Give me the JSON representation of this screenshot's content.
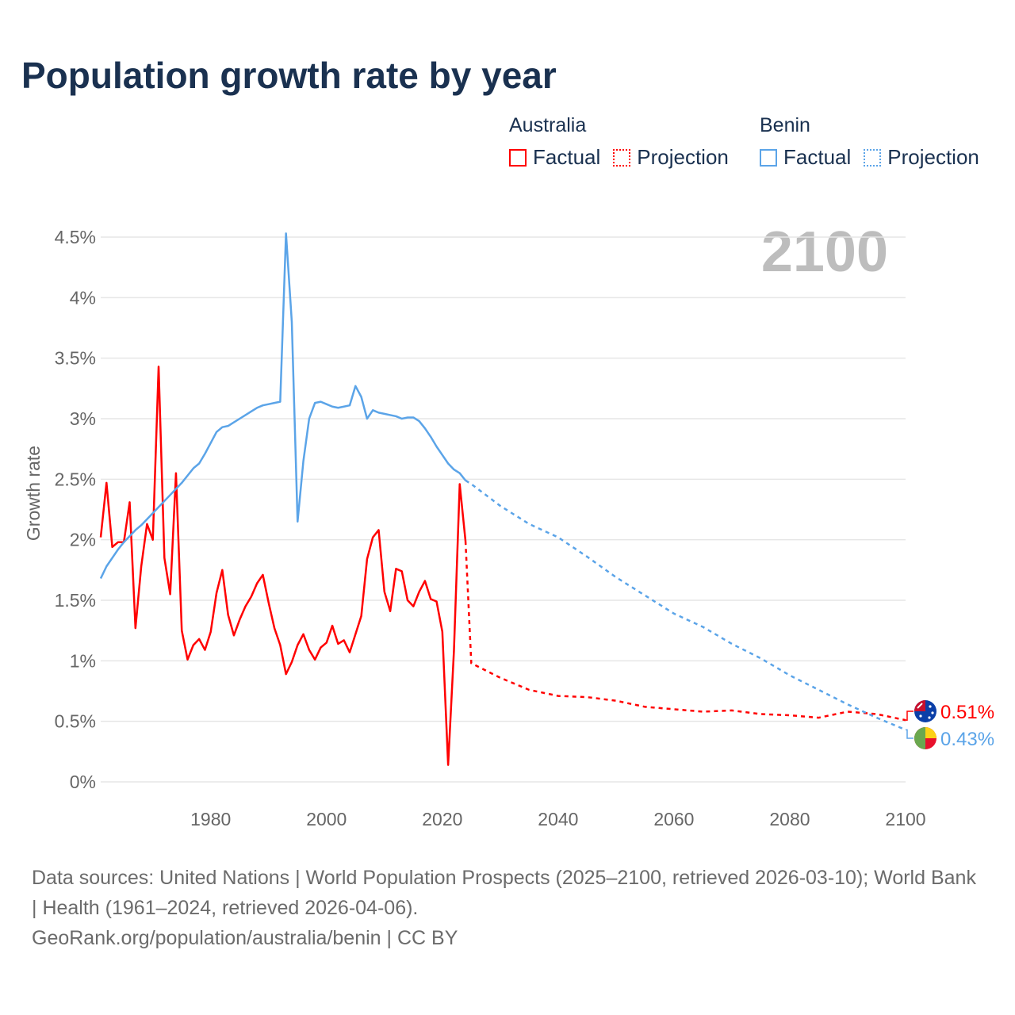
{
  "title": "Population growth rate by year",
  "legend": {
    "groups": [
      {
        "name": "Australia",
        "color": "#ff0000",
        "factual": "Factual",
        "projection": "Projection"
      },
      {
        "name": "Benin",
        "color": "#5ba4e8",
        "factual": "Factual",
        "projection": "Projection"
      }
    ]
  },
  "year_display": "2100",
  "footer": {
    "sources": "Data sources: United Nations | World Population Prospects (2025–2100, retrieved 2026-03-10); World Bank | Health (1961–2024, retrieved 2026-04-06).",
    "credit": "GeoRank.org/population/australia/benin | CC BY"
  },
  "chart_data": {
    "type": "line",
    "title": "Population growth rate by year",
    "xlabel": "",
    "ylabel": "Growth rate",
    "xlim": [
      1961,
      2100
    ],
    "ylim": [
      0,
      4.5
    ],
    "x_ticks": [
      1980,
      2000,
      2020,
      2040,
      2060,
      2080,
      2100
    ],
    "y_ticks": [
      0,
      0.5,
      1,
      1.5,
      2,
      2.5,
      3,
      3.5,
      4,
      4.5
    ],
    "y_tick_labels": [
      "0%",
      "0.5%",
      "1%",
      "1.5%",
      "2%",
      "2.5%",
      "3%",
      "3.5%",
      "4%",
      "4.5%"
    ],
    "grid": true,
    "legend_position": "top-right",
    "series": [
      {
        "name": "Australia",
        "color": "#ff0000",
        "end_label": "0.51%",
        "factual": {
          "start_year": 1961,
          "values": [
            2.02,
            2.47,
            1.94,
            1.98,
            1.98,
            2.31,
            1.27,
            1.78,
            2.13,
            2.0,
            3.43,
            1.85,
            1.55,
            2.55,
            1.25,
            1.01,
            1.13,
            1.18,
            1.09,
            1.24,
            1.56,
            1.75,
            1.38,
            1.21,
            1.34,
            1.45,
            1.53,
            1.64,
            1.71,
            1.48,
            1.27,
            1.13,
            0.89,
            0.99,
            1.13,
            1.22,
            1.09,
            1.01,
            1.11,
            1.15,
            1.29,
            1.14,
            1.17,
            1.07,
            1.22,
            1.37,
            1.84,
            2.02,
            2.08,
            1.57,
            1.41,
            1.76,
            1.74,
            1.5,
            1.45,
            1.57,
            1.66,
            1.51,
            1.49,
            1.24,
            0.14,
            1.08,
            2.46,
            1.99
          ]
        },
        "projection": {
          "years": [
            2024,
            2025,
            2030,
            2035,
            2040,
            2045,
            2050,
            2055,
            2060,
            2065,
            2070,
            2075,
            2080,
            2085,
            2090,
            2095,
            2100
          ],
          "values": [
            1.99,
            0.98,
            0.86,
            0.76,
            0.71,
            0.7,
            0.67,
            0.62,
            0.6,
            0.58,
            0.59,
            0.56,
            0.55,
            0.53,
            0.58,
            0.56,
            0.51
          ]
        }
      },
      {
        "name": "Benin",
        "color": "#5ba4e8",
        "end_label": "0.43%",
        "factual": {
          "start_year": 1961,
          "values": [
            1.68,
            1.78,
            1.85,
            1.92,
            1.98,
            2.03,
            2.08,
            2.12,
            2.17,
            2.22,
            2.27,
            2.32,
            2.37,
            2.42,
            2.47,
            2.53,
            2.59,
            2.63,
            2.71,
            2.8,
            2.89,
            2.93,
            2.94,
            2.97,
            3.0,
            3.03,
            3.06,
            3.09,
            3.11,
            3.12,
            3.13,
            3.14,
            4.53,
            3.8,
            2.15,
            2.65,
            3.0,
            3.13,
            3.14,
            3.12,
            3.1,
            3.09,
            3.1,
            3.11,
            3.27,
            3.18,
            3.0,
            3.07,
            3.05,
            3.04,
            3.03,
            3.02,
            3.0,
            3.01,
            3.01,
            2.98,
            2.92,
            2.85,
            2.77,
            2.7,
            2.63,
            2.58,
            2.55,
            2.49
          ]
        },
        "projection": {
          "years": [
            2024,
            2025,
            2030,
            2035,
            2040,
            2045,
            2050,
            2055,
            2060,
            2065,
            2070,
            2075,
            2080,
            2085,
            2090,
            2095,
            2100
          ],
          "values": [
            2.49,
            2.46,
            2.28,
            2.13,
            2.02,
            1.86,
            1.69,
            1.54,
            1.39,
            1.28,
            1.14,
            1.02,
            0.88,
            0.76,
            0.64,
            0.53,
            0.43
          ]
        }
      }
    ]
  }
}
